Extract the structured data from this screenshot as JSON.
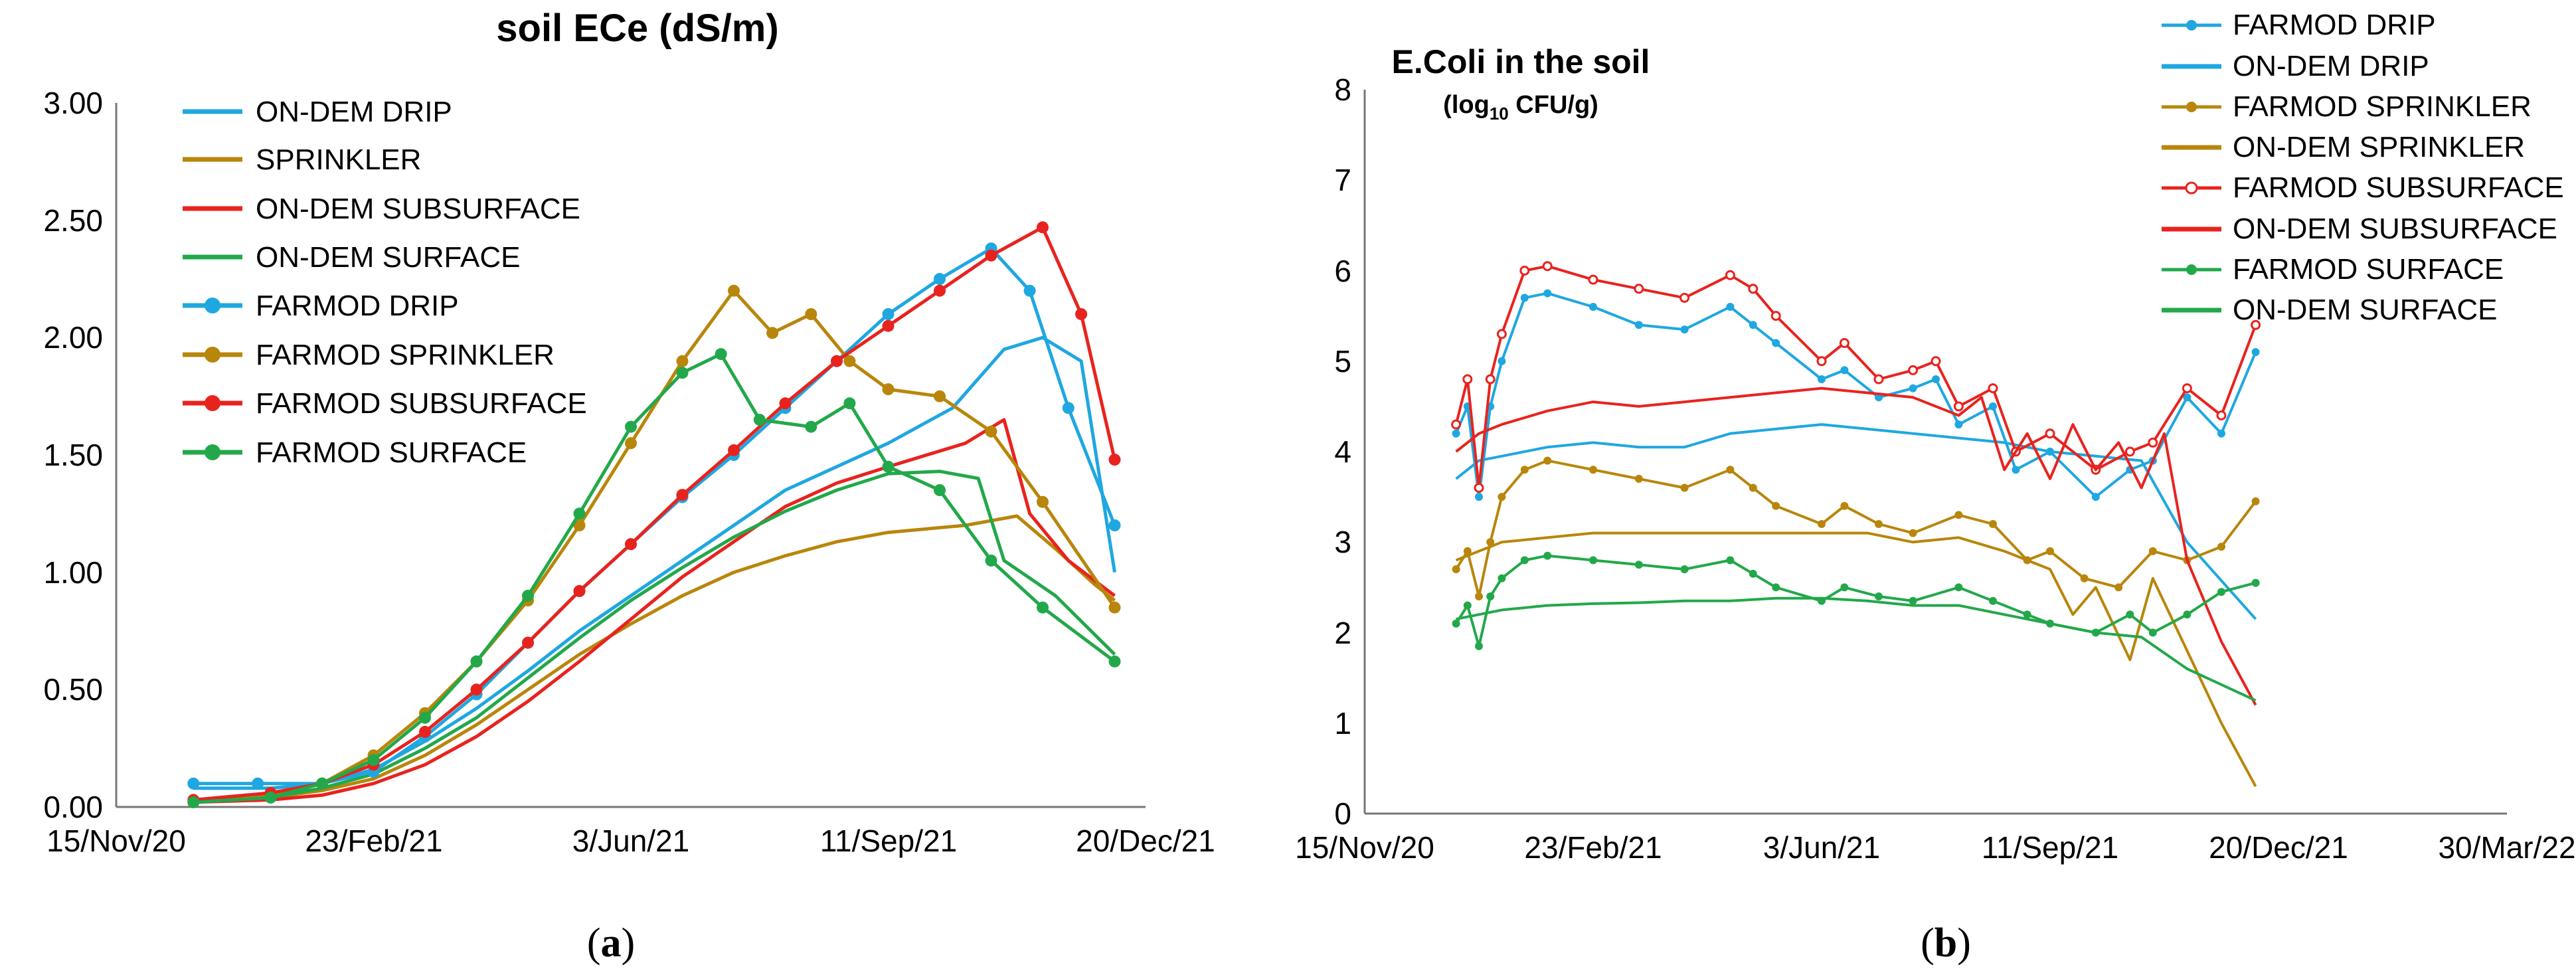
{
  "chart_data": [
    {
      "type": "line",
      "panel": "a",
      "panel_label_open": "(",
      "panel_label_letter": "a",
      "panel_label_close": ")",
      "title": "soil ECe (dS/m)",
      "xlabel": "",
      "ylabel": "",
      "x_ticks": [
        "15/Nov/20",
        "23/Feb/21",
        "3/Jun/21",
        "11/Sep/21",
        "20/Dec/21"
      ],
      "xlim": [
        0,
        400
      ],
      "y_ticks": [
        "0.00",
        "0.50",
        "1.00",
        "1.50",
        "2.00",
        "2.50",
        "3.00"
      ],
      "ylim": [
        0,
        3
      ],
      "legend": "top-left",
      "series": [
        {
          "name": "ON-DEM DRIP",
          "color": "#1FA7E0",
          "marker": false,
          "x": [
            30,
            60,
            80,
            100,
            120,
            140,
            160,
            180,
            200,
            220,
            240,
            260,
            280,
            300,
            325,
            345,
            360,
            375,
            388
          ],
          "y": [
            0.08,
            0.08,
            0.1,
            0.16,
            0.28,
            0.42,
            0.58,
            0.75,
            0.9,
            1.05,
            1.2,
            1.35,
            1.45,
            1.55,
            1.7,
            1.95,
            2.0,
            1.9,
            1.0
          ]
        },
        {
          "name": "SPRINKLER",
          "color": "#B8860B",
          "marker": false,
          "x": [
            30,
            60,
            80,
            100,
            120,
            140,
            160,
            180,
            200,
            220,
            240,
            260,
            280,
            300,
            330,
            350,
            365,
            380,
            388
          ],
          "y": [
            0.02,
            0.04,
            0.07,
            0.12,
            0.22,
            0.35,
            0.5,
            0.65,
            0.78,
            0.9,
            1.0,
            1.07,
            1.13,
            1.17,
            1.2,
            1.24,
            1.1,
            0.95,
            0.88
          ]
        },
        {
          "name": "ON-DEM SUBSURFACE",
          "color": "#E8231E",
          "marker": false,
          "x": [
            30,
            60,
            80,
            100,
            120,
            140,
            160,
            180,
            200,
            220,
            240,
            260,
            280,
            300,
            330,
            345,
            355,
            370,
            388
          ],
          "y": [
            0.02,
            0.03,
            0.05,
            0.1,
            0.18,
            0.3,
            0.45,
            0.62,
            0.8,
            0.98,
            1.13,
            1.28,
            1.38,
            1.45,
            1.55,
            1.65,
            1.25,
            1.05,
            0.9
          ]
        },
        {
          "name": "ON-DEM SURFACE",
          "color": "#22A84A",
          "marker": false,
          "x": [
            30,
            60,
            80,
            100,
            120,
            140,
            160,
            180,
            200,
            220,
            240,
            260,
            280,
            300,
            320,
            335,
            345,
            365,
            388
          ],
          "y": [
            0.02,
            0.04,
            0.08,
            0.14,
            0.25,
            0.38,
            0.55,
            0.72,
            0.88,
            1.02,
            1.15,
            1.26,
            1.35,
            1.42,
            1.43,
            1.4,
            1.05,
            0.9,
            0.65
          ]
        },
        {
          "name": "FARMOD DRIP",
          "color": "#1FA7E0",
          "marker": true,
          "x": [
            30,
            55,
            80,
            100,
            120,
            140,
            160,
            180,
            200,
            220,
            240,
            260,
            280,
            300,
            320,
            340,
            355,
            370,
            388
          ],
          "y": [
            0.1,
            0.1,
            0.1,
            0.15,
            0.3,
            0.48,
            0.7,
            0.92,
            1.12,
            1.32,
            1.5,
            1.7,
            1.9,
            2.1,
            2.25,
            2.38,
            2.2,
            1.7,
            1.2
          ]
        },
        {
          "name": "FARMOD SPRINKLER",
          "color": "#B8860B",
          "marker": true,
          "x": [
            30,
            60,
            80,
            100,
            120,
            140,
            160,
            180,
            200,
            220,
            240,
            255,
            270,
            285,
            300,
            320,
            340,
            360,
            388
          ],
          "y": [
            0.02,
            0.05,
            0.1,
            0.22,
            0.4,
            0.62,
            0.88,
            1.2,
            1.55,
            1.9,
            2.2,
            2.02,
            2.1,
            1.9,
            1.78,
            1.75,
            1.6,
            1.3,
            0.85
          ]
        },
        {
          "name": "FARMOD SUBSURFACE",
          "color": "#E8231E",
          "marker": true,
          "x": [
            30,
            60,
            80,
            100,
            120,
            140,
            160,
            180,
            200,
            220,
            240,
            260,
            280,
            300,
            320,
            340,
            360,
            375,
            388
          ],
          "y": [
            0.03,
            0.06,
            0.1,
            0.18,
            0.32,
            0.5,
            0.7,
            0.92,
            1.12,
            1.33,
            1.52,
            1.72,
            1.9,
            2.05,
            2.2,
            2.35,
            2.47,
            2.1,
            1.48
          ]
        },
        {
          "name": "FARMOD SURFACE",
          "color": "#22A84A",
          "marker": true,
          "x": [
            30,
            60,
            80,
            100,
            120,
            140,
            160,
            180,
            200,
            220,
            235,
            250,
            270,
            285,
            300,
            320,
            340,
            360,
            388
          ],
          "y": [
            0.02,
            0.04,
            0.1,
            0.2,
            0.38,
            0.62,
            0.9,
            1.25,
            1.62,
            1.85,
            1.93,
            1.65,
            1.62,
            1.72,
            1.45,
            1.35,
            1.05,
            0.85,
            0.62
          ]
        }
      ]
    },
    {
      "type": "line",
      "panel": "b",
      "panel_label_open": "(",
      "panel_label_letter": "b",
      "panel_label_close": ")",
      "title": "E.Coli in the soil",
      "subtitle_prefix": "(log",
      "subtitle_sub": "10",
      "subtitle_suffix": " CFU/g)",
      "xlabel": "",
      "ylabel": "",
      "x_ticks": [
        "15/Nov/20",
        "23/Feb/21",
        "3/Jun/21",
        "11/Sep/21",
        "20/Dec/21",
        "30/Mar/22"
      ],
      "xlim": [
        0,
        500
      ],
      "y_ticks": [
        "0",
        "1",
        "2",
        "3",
        "4",
        "5",
        "6",
        "7",
        "8"
      ],
      "ylim": [
        0,
        8
      ],
      "legend": "top-right",
      "series": [
        {
          "name": "FARMOD DRIP",
          "color": "#1FA7E0",
          "marker": true,
          "x": [
            40,
            45,
            50,
            55,
            60,
            70,
            80,
            100,
            120,
            140,
            160,
            170,
            180,
            200,
            210,
            225,
            240,
            250,
            260,
            275,
            285,
            300,
            320,
            335,
            345,
            360,
            375,
            390
          ],
          "y": [
            4.2,
            4.5,
            3.5,
            4.5,
            5.0,
            5.7,
            5.75,
            5.6,
            5.4,
            5.35,
            5.6,
            5.4,
            5.2,
            4.8,
            4.9,
            4.6,
            4.7,
            4.8,
            4.3,
            4.5,
            3.8,
            4.0,
            3.5,
            3.8,
            3.9,
            4.6,
            4.2,
            5.1
          ]
        },
        {
          "name": "ON-DEM DRIP",
          "color": "#1FA7E0",
          "marker": false,
          "x": [
            40,
            50,
            60,
            80,
            100,
            120,
            140,
            160,
            180,
            200,
            220,
            240,
            260,
            280,
            300,
            320,
            340,
            360,
            390
          ],
          "y": [
            3.7,
            3.9,
            3.95,
            4.05,
            4.1,
            4.05,
            4.05,
            4.2,
            4.25,
            4.3,
            4.25,
            4.2,
            4.15,
            4.1,
            4.0,
            3.95,
            3.9,
            3.0,
            2.15
          ]
        },
        {
          "name": "FARMOD SPRINKLER",
          "color": "#B8860B",
          "marker": true,
          "x": [
            40,
            45,
            50,
            55,
            60,
            70,
            80,
            100,
            120,
            140,
            160,
            170,
            180,
            200,
            210,
            225,
            240,
            260,
            275,
            290,
            300,
            315,
            330,
            345,
            360,
            375,
            390
          ],
          "y": [
            2.7,
            2.9,
            2.4,
            3.0,
            3.5,
            3.8,
            3.9,
            3.8,
            3.7,
            3.6,
            3.8,
            3.6,
            3.4,
            3.2,
            3.4,
            3.2,
            3.1,
            3.3,
            3.2,
            2.8,
            2.9,
            2.6,
            2.5,
            2.9,
            2.8,
            2.95,
            3.45
          ]
        },
        {
          "name": "ON-DEM SPRINKLER",
          "color": "#B8860B",
          "marker": false,
          "x": [
            40,
            50,
            60,
            80,
            100,
            120,
            140,
            160,
            180,
            200,
            220,
            240,
            260,
            280,
            300,
            310,
            320,
            335,
            345,
            360,
            375,
            390
          ],
          "y": [
            2.8,
            2.9,
            3.0,
            3.05,
            3.1,
            3.1,
            3.1,
            3.1,
            3.1,
            3.1,
            3.1,
            3.0,
            3.05,
            2.9,
            2.7,
            2.2,
            2.5,
            1.7,
            2.6,
            1.8,
            1.0,
            0.3
          ]
        },
        {
          "name": "FARMOD SUBSURFACE",
          "color": "#E8231E",
          "marker": true,
          "x": [
            40,
            45,
            50,
            55,
            60,
            70,
            80,
            100,
            120,
            140,
            160,
            170,
            180,
            200,
            210,
            225,
            240,
            250,
            260,
            275,
            285,
            300,
            320,
            335,
            345,
            360,
            375,
            390
          ],
          "y": [
            4.3,
            4.8,
            3.6,
            4.8,
            5.3,
            6.0,
            6.05,
            5.9,
            5.8,
            5.7,
            5.95,
            5.8,
            5.5,
            5.0,
            5.2,
            4.8,
            4.9,
            5.0,
            4.5,
            4.7,
            4.0,
            4.2,
            3.8,
            4.0,
            4.1,
            4.7,
            4.4,
            5.4
          ]
        },
        {
          "name": "ON-DEM SUBSURFACE",
          "color": "#E8231E",
          "marker": false,
          "x": [
            40,
            50,
            60,
            80,
            100,
            120,
            140,
            160,
            180,
            200,
            220,
            240,
            260,
            270,
            280,
            290,
            300,
            310,
            320,
            330,
            340,
            350,
            360,
            375,
            390
          ],
          "y": [
            4.0,
            4.2,
            4.3,
            4.45,
            4.55,
            4.5,
            4.55,
            4.6,
            4.65,
            4.7,
            4.65,
            4.6,
            4.4,
            4.6,
            3.8,
            4.2,
            3.7,
            4.3,
            3.8,
            4.1,
            3.6,
            4.2,
            2.8,
            1.9,
            1.2
          ]
        },
        {
          "name": "FARMOD SURFACE",
          "color": "#22A84A",
          "marker": true,
          "x": [
            40,
            45,
            50,
            55,
            60,
            70,
            80,
            100,
            120,
            140,
            160,
            170,
            180,
            200,
            210,
            225,
            240,
            260,
            275,
            290,
            300,
            320,
            335,
            345,
            360,
            375,
            390
          ],
          "y": [
            2.1,
            2.3,
            1.85,
            2.4,
            2.6,
            2.8,
            2.85,
            2.8,
            2.75,
            2.7,
            2.8,
            2.65,
            2.5,
            2.35,
            2.5,
            2.4,
            2.35,
            2.5,
            2.35,
            2.2,
            2.1,
            2.0,
            2.2,
            2.0,
            2.2,
            2.45,
            2.55
          ]
        },
        {
          "name": "ON-DEM SURFACE",
          "color": "#22A84A",
          "marker": false,
          "x": [
            40,
            50,
            60,
            80,
            100,
            120,
            140,
            160,
            180,
            200,
            220,
            240,
            260,
            280,
            300,
            320,
            340,
            360,
            390
          ],
          "y": [
            2.15,
            2.2,
            2.25,
            2.3,
            2.32,
            2.33,
            2.35,
            2.35,
            2.38,
            2.38,
            2.35,
            2.3,
            2.3,
            2.2,
            2.1,
            2.0,
            1.95,
            1.6,
            1.25
          ]
        }
      ]
    }
  ]
}
